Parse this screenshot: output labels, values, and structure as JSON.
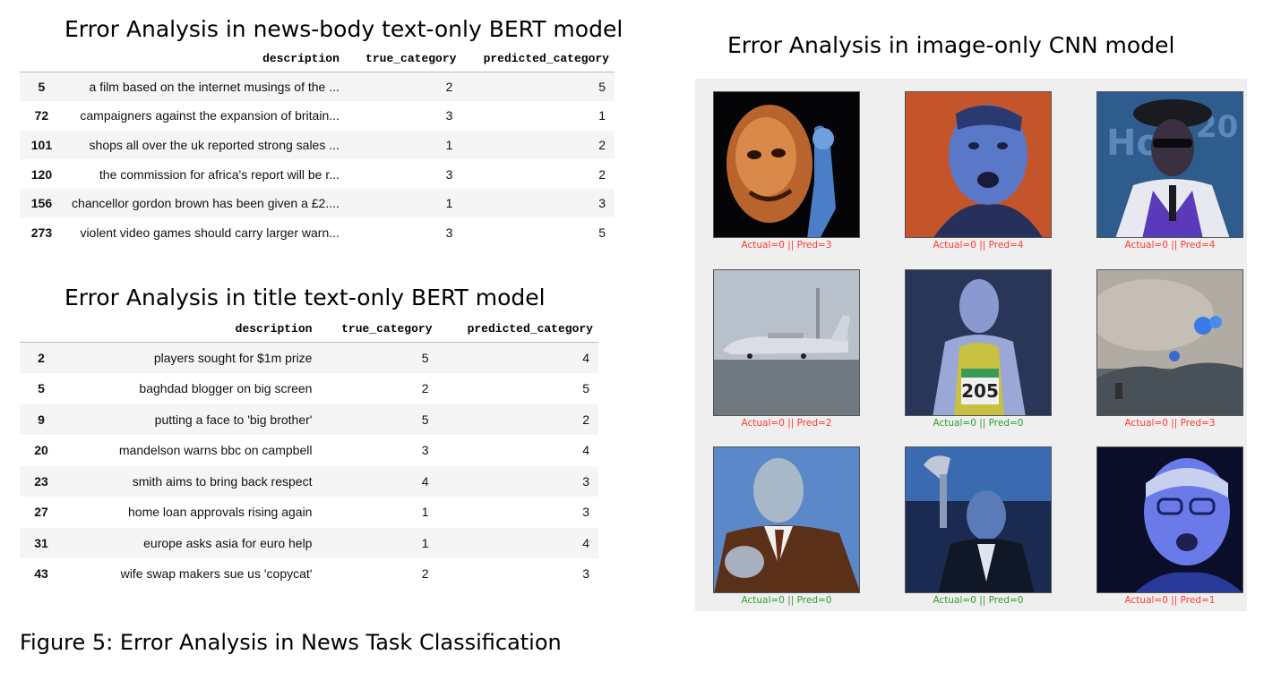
{
  "titles": {
    "bert_body": "Error Analysis in news-body text-only BERT model",
    "bert_title": "Error Analysis in title text-only BERT model",
    "cnn": "Error Analysis in image-only CNN model"
  },
  "table_body": {
    "headers": [
      "",
      "description",
      "true_category",
      "predicted_category"
    ],
    "rows": [
      {
        "idx": "5",
        "description": "a film based on the internet musings of the ...",
        "true_category": "2",
        "predicted_category": "5"
      },
      {
        "idx": "72",
        "description": "campaigners against the expansion of britain...",
        "true_category": "3",
        "predicted_category": "1"
      },
      {
        "idx": "101",
        "description": "shops all over the uk reported strong sales ...",
        "true_category": "1",
        "predicted_category": "2"
      },
      {
        "idx": "120",
        "description": "the commission for africa's report will be r...",
        "true_category": "3",
        "predicted_category": "2"
      },
      {
        "idx": "156",
        "description": "chancellor gordon brown has been given a £2....",
        "true_category": "1",
        "predicted_category": "3"
      },
      {
        "idx": "273",
        "description": "violent video games should carry larger warn...",
        "true_category": "3",
        "predicted_category": "5"
      }
    ]
  },
  "table_title": {
    "headers": [
      "",
      "description",
      "true_category",
      "predicted_category"
    ],
    "rows": [
      {
        "idx": "2",
        "description": "players sought for $1m prize",
        "true_category": "5",
        "predicted_category": "4"
      },
      {
        "idx": "5",
        "description": "baghdad blogger on big screen",
        "true_category": "2",
        "predicted_category": "5"
      },
      {
        "idx": "9",
        "description": "putting a face to 'big brother'",
        "true_category": "5",
        "predicted_category": "2"
      },
      {
        "idx": "20",
        "description": "mandelson warns bbc on campbell",
        "true_category": "3",
        "predicted_category": "4"
      },
      {
        "idx": "23",
        "description": "smith aims to bring back respect",
        "true_category": "4",
        "predicted_category": "3"
      },
      {
        "idx": "27",
        "description": "home loan approvals rising again",
        "true_category": "1",
        "predicted_category": "3"
      },
      {
        "idx": "31",
        "description": "europe asks asia for euro help",
        "true_category": "1",
        "predicted_category": "4"
      },
      {
        "idx": "43",
        "description": "wife swap makers sue us 'copycat'",
        "true_category": "2",
        "predicted_category": "3"
      }
    ]
  },
  "cnn_grid": {
    "colors": {
      "wrong": "#ff3b30",
      "correct": "#2ca02c"
    },
    "cells": [
      {
        "caption": "Actual=0 || Pred=3",
        "correct": false,
        "scene": "face-glow-orange"
      },
      {
        "caption": "Actual=0 || Pred=4",
        "correct": false,
        "scene": "man-blue-face-orange-bg"
      },
      {
        "caption": "Actual=0 || Pred=4",
        "correct": false,
        "scene": "man-hat-purple-vest"
      },
      {
        "caption": "Actual=0 || Pred=2",
        "correct": false,
        "scene": "airplane-on-runway"
      },
      {
        "caption": "Actual=0 || Pred=0",
        "correct": true,
        "scene": "runner-bib-205"
      },
      {
        "caption": "Actual=0 || Pred=3",
        "correct": false,
        "scene": "smoky-landscape"
      },
      {
        "caption": "Actual=0 || Pred=0",
        "correct": true,
        "scene": "man-suit-thumbs-up"
      },
      {
        "caption": "Actual=0 || Pred=0",
        "correct": true,
        "scene": "man-raising-trophy"
      },
      {
        "caption": "Actual=0 || Pred=1",
        "correct": false,
        "scene": "old-man-glasses-blue"
      }
    ]
  },
  "figure_caption": "Figure 5: Error Analysis in News Task Classification"
}
